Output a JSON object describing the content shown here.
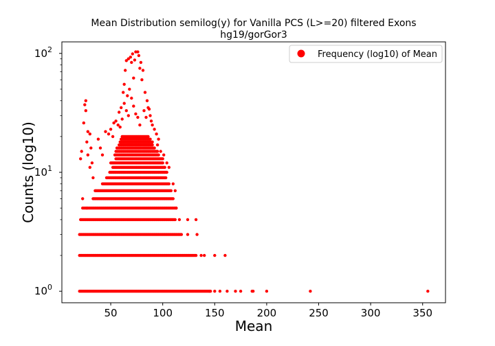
{
  "chart_data": {
    "type": "scatter",
    "title": "Mean Distribution semilog(y) for Vanilla PCS (L>=20) filtered Exons",
    "subtitle": "hg19/gorGor3",
    "xlabel": "Mean",
    "ylabel": "Counts (log10)",
    "xlim": [
      3,
      372
    ],
    "ylim": [
      0.8,
      125
    ],
    "y_scale": "log",
    "x_ticks": [
      {
        "value": 50,
        "label": "50"
      },
      {
        "value": 100,
        "label": "100"
      },
      {
        "value": 150,
        "label": "150"
      },
      {
        "value": 200,
        "label": "200"
      },
      {
        "value": 250,
        "label": "250"
      },
      {
        "value": 300,
        "label": "300"
      },
      {
        "value": 350,
        "label": "350"
      }
    ],
    "y_ticks": [
      {
        "value": 1,
        "base": "10",
        "exp": "0"
      },
      {
        "value": 10,
        "base": "10",
        "exp": "1"
      },
      {
        "value": 100,
        "base": "10",
        "exp": "2"
      }
    ],
    "grid": false,
    "legend_position": "top-right",
    "marker_color": "#ff0000",
    "series": [
      {
        "name": "Frequency (log10) of Mean",
        "bands": [
          {
            "y": 1,
            "x_from": 20,
            "x_to": 146
          },
          {
            "y": 2,
            "x_from": 20,
            "x_to": 132
          },
          {
            "y": 3,
            "x_from": 20,
            "x_to": 118
          },
          {
            "y": 4,
            "x_from": 21,
            "x_to": 112
          },
          {
            "y": 5,
            "x_from": 23,
            "x_to": 113
          },
          {
            "y": 6,
            "x_from": 33,
            "x_to": 110
          },
          {
            "y": 7,
            "x_from": 36,
            "x_to": 108
          },
          {
            "y": 8,
            "x_from": 42,
            "x_to": 106
          },
          {
            "y": 9,
            "x_from": 46,
            "x_to": 103
          },
          {
            "y": 10,
            "x_from": 49,
            "x_to": 104
          },
          {
            "y": 11,
            "x_from": 52,
            "x_to": 102
          },
          {
            "y": 12,
            "x_from": 50,
            "x_to": 100
          },
          {
            "y": 13,
            "x_from": 55,
            "x_to": 100
          },
          {
            "y": 14,
            "x_from": 54,
            "x_to": 96
          },
          {
            "y": 15,
            "x_from": 55,
            "x_to": 95
          },
          {
            "y": 16,
            "x_from": 56,
            "x_to": 92
          },
          {
            "y": 17,
            "x_from": 58,
            "x_to": 90
          },
          {
            "y": 18,
            "x_from": 59,
            "x_to": 90
          },
          {
            "y": 19,
            "x_from": 60,
            "x_to": 88
          },
          {
            "y": 20,
            "x_from": 61,
            "x_to": 86
          }
        ],
        "points": [
          [
            21,
            13
          ],
          [
            22,
            15
          ],
          [
            24,
            26
          ],
          [
            27,
            18
          ],
          [
            28,
            14
          ],
          [
            30,
            11
          ],
          [
            33,
            9
          ],
          [
            25,
            37
          ],
          [
            26,
            40
          ],
          [
            26,
            33
          ],
          [
            28,
            22
          ],
          [
            30,
            21
          ],
          [
            31,
            16
          ],
          [
            32,
            12
          ],
          [
            23,
            6
          ],
          [
            27,
            5
          ],
          [
            35,
            7
          ],
          [
            38,
            19
          ],
          [
            40,
            16
          ],
          [
            42,
            14
          ],
          [
            45,
            22
          ],
          [
            48,
            21
          ],
          [
            50,
            23
          ],
          [
            52,
            20
          ],
          [
            53,
            26
          ],
          [
            55,
            27
          ],
          [
            57,
            25
          ],
          [
            58,
            32
          ],
          [
            60,
            35
          ],
          [
            62,
            47
          ],
          [
            63,
            55
          ],
          [
            64,
            72
          ],
          [
            65,
            87
          ],
          [
            67,
            90
          ],
          [
            69,
            93
          ],
          [
            70,
            84
          ],
          [
            71,
            99
          ],
          [
            72,
            62
          ],
          [
            73,
            88
          ],
          [
            74,
            103
          ],
          [
            76,
            103
          ],
          [
            77,
            96
          ],
          [
            78,
            75
          ],
          [
            79,
            84
          ],
          [
            80,
            60
          ],
          [
            81,
            72
          ],
          [
            83,
            47
          ],
          [
            85,
            40
          ],
          [
            86,
            35
          ],
          [
            87,
            34
          ],
          [
            88,
            30
          ],
          [
            89,
            27
          ],
          [
            90,
            25
          ],
          [
            92,
            23
          ],
          [
            94,
            21
          ],
          [
            96,
            19
          ],
          [
            66,
            44
          ],
          [
            68,
            50
          ],
          [
            70,
            42
          ],
          [
            72,
            36
          ],
          [
            74,
            31
          ],
          [
            76,
            29
          ],
          [
            78,
            25
          ],
          [
            63,
            38
          ],
          [
            65,
            33
          ],
          [
            67,
            30
          ],
          [
            61,
            28
          ],
          [
            59,
            24
          ],
          [
            82,
            33
          ],
          [
            84,
            29
          ],
          [
            95,
            17
          ],
          [
            98,
            15
          ],
          [
            101,
            14
          ],
          [
            104,
            12
          ],
          [
            106,
            11
          ],
          [
            110,
            8
          ],
          [
            112,
            7
          ],
          [
            113,
            5
          ],
          [
            116,
            4
          ],
          [
            124,
            4
          ],
          [
            132,
            4
          ],
          [
            133,
            3
          ],
          [
            124,
            3
          ],
          [
            137,
            2
          ],
          [
            140,
            2
          ],
          [
            145,
            1
          ],
          [
            150,
            2
          ],
          [
            160,
            2
          ],
          [
            150,
            1
          ],
          [
            155,
            1
          ],
          [
            162,
            1
          ],
          [
            170,
            1
          ],
          [
            175,
            1
          ],
          [
            186,
            1
          ],
          [
            187,
            1
          ],
          [
            200,
            1
          ],
          [
            242,
            1
          ],
          [
            355,
            1
          ]
        ]
      }
    ]
  }
}
